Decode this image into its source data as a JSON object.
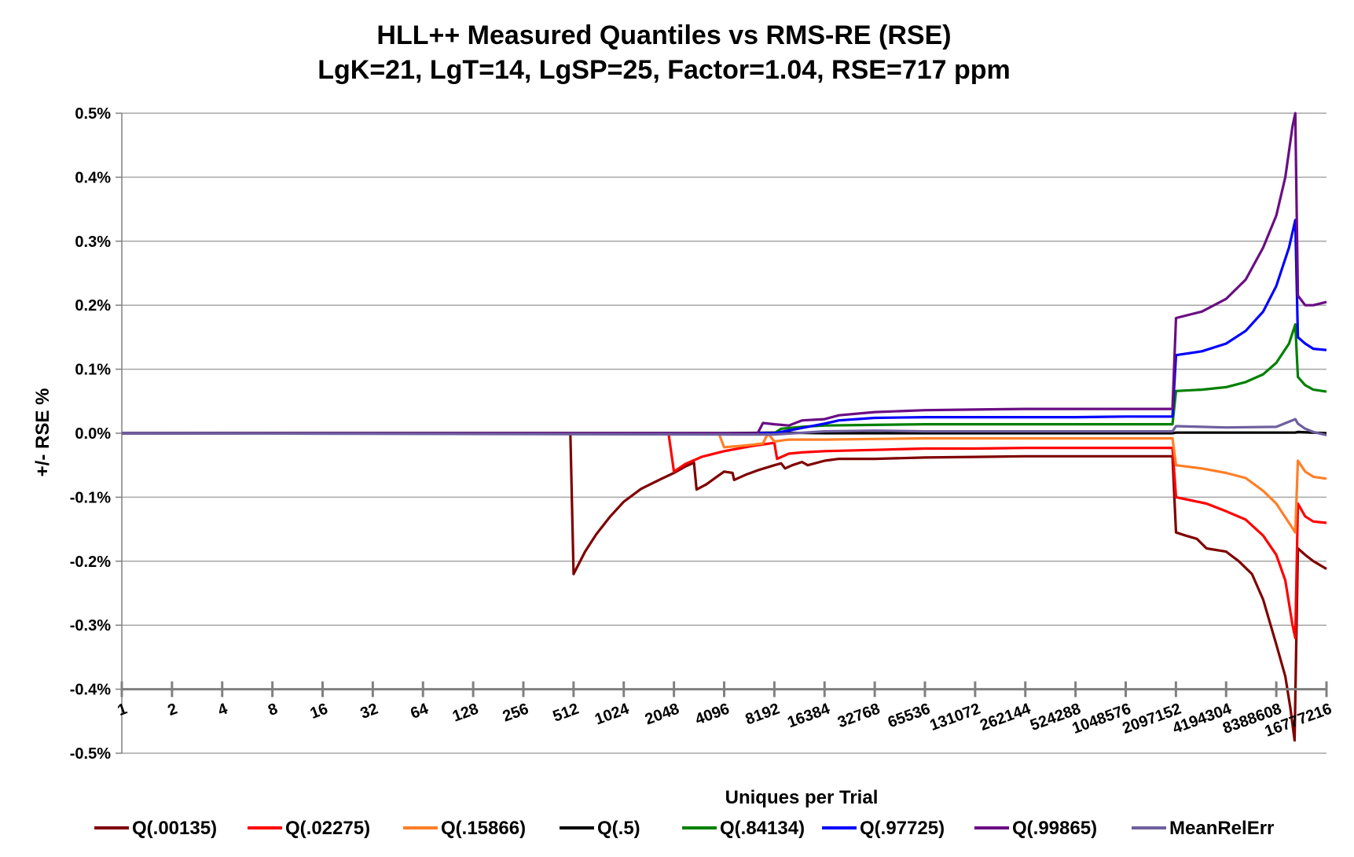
{
  "chart_data": {
    "type": "line",
    "title": "HLL++ Measured Quantiles vs RMS-RE (RSE)",
    "subtitle": "LgK=21, LgT=14, LgSP=25, Factor=1.04, RSE=717 ppm",
    "xlabel": "Uniques per Trial",
    "ylabel": "+/-  RSE %",
    "x_scale": "log2",
    "xlim": [
      1,
      16777216
    ],
    "ylim": [
      -0.5,
      0.5
    ],
    "grid": true,
    "legend_position": "bottom",
    "x_tick_labels": [
      "1",
      "2",
      "4",
      "8",
      "16",
      "32",
      "64",
      "128",
      "256",
      "512",
      "1024",
      "2048",
      "4096",
      "8192",
      "16384",
      "32768",
      "65536",
      "131072",
      "262144",
      "524288",
      "1048576",
      "2097152",
      "4194304",
      "8388608",
      "16777216"
    ],
    "y_tick_labels": [
      "0.5%",
      "0.4%",
      "0.3%",
      "0.2%",
      "0.1%",
      "0.0%",
      "-0.1%",
      "-0.2%",
      "-0.3%",
      "-0.4%",
      "-0.5%"
    ],
    "y_ticks": [
      0.5,
      0.4,
      0.3,
      0.2,
      0.1,
      0.0,
      -0.1,
      -0.2,
      -0.3,
      -0.4,
      -0.5
    ],
    "series": [
      {
        "name": "Q(.00135)",
        "color": "#7f0000",
        "points": [
          [
            1,
            0
          ],
          [
            256,
            0
          ],
          [
            490,
            0
          ],
          [
            512,
            -0.22
          ],
          [
            600,
            -0.185
          ],
          [
            700,
            -0.158
          ],
          [
            850,
            -0.13
          ],
          [
            1024,
            -0.107
          ],
          [
            1300,
            -0.087
          ],
          [
            1700,
            -0.072
          ],
          [
            2048,
            -0.062
          ],
          [
            2400,
            -0.052
          ],
          [
            2700,
            -0.046
          ],
          [
            2800,
            -0.088
          ],
          [
            3200,
            -0.08
          ],
          [
            3700,
            -0.068
          ],
          [
            4096,
            -0.06
          ],
          [
            4600,
            -0.062
          ],
          [
            4700,
            -0.073
          ],
          [
            5500,
            -0.065
          ],
          [
            6500,
            -0.058
          ],
          [
            8192,
            -0.05
          ],
          [
            9000,
            -0.047
          ],
          [
            9500,
            -0.055
          ],
          [
            10500,
            -0.05
          ],
          [
            12000,
            -0.045
          ],
          [
            13000,
            -0.05
          ],
          [
            16384,
            -0.043
          ],
          [
            20000,
            -0.04
          ],
          [
            32768,
            -0.04
          ],
          [
            65536,
            -0.038
          ],
          [
            131072,
            -0.037
          ],
          [
            262144,
            -0.036
          ],
          [
            524288,
            -0.036
          ],
          [
            1048576,
            -0.036
          ],
          [
            2000000,
            -0.036
          ],
          [
            2100000,
            -0.155
          ],
          [
            2400000,
            -0.16
          ],
          [
            2800000,
            -0.165
          ],
          [
            3200000,
            -0.18
          ],
          [
            4194304,
            -0.185
          ],
          [
            5000000,
            -0.2
          ],
          [
            6000000,
            -0.22
          ],
          [
            7000000,
            -0.26
          ],
          [
            8388608,
            -0.33
          ],
          [
            9500000,
            -0.38
          ],
          [
            10200000,
            -0.43
          ],
          [
            10800000,
            -0.48
          ],
          [
            11300000,
            -0.18
          ],
          [
            12500000,
            -0.19
          ],
          [
            14000000,
            -0.2
          ],
          [
            16777216,
            -0.212
          ]
        ]
      },
      {
        "name": "Q(.02275)",
        "color": "#ff0000",
        "points": [
          [
            1,
            0
          ],
          [
            1024,
            0
          ],
          [
            1900,
            0
          ],
          [
            2048,
            -0.06
          ],
          [
            2400,
            -0.048
          ],
          [
            3000,
            -0.037
          ],
          [
            4096,
            -0.028
          ],
          [
            6000,
            -0.02
          ],
          [
            8192,
            -0.015
          ],
          [
            8500,
            -0.04
          ],
          [
            10000,
            -0.032
          ],
          [
            12000,
            -0.03
          ],
          [
            16384,
            -0.028
          ],
          [
            32768,
            -0.026
          ],
          [
            65536,
            -0.024
          ],
          [
            131072,
            -0.024
          ],
          [
            262144,
            -0.023
          ],
          [
            524288,
            -0.023
          ],
          [
            1048576,
            -0.023
          ],
          [
            2000000,
            -0.023
          ],
          [
            2100000,
            -0.1
          ],
          [
            2600000,
            -0.105
          ],
          [
            3200000,
            -0.11
          ],
          [
            4194304,
            -0.122
          ],
          [
            5500000,
            -0.135
          ],
          [
            7000000,
            -0.16
          ],
          [
            8388608,
            -0.19
          ],
          [
            9500000,
            -0.23
          ],
          [
            10500000,
            -0.3
          ],
          [
            10900000,
            -0.32
          ],
          [
            11300000,
            -0.11
          ],
          [
            12500000,
            -0.13
          ],
          [
            14000000,
            -0.138
          ],
          [
            16777216,
            -0.14
          ]
        ]
      },
      {
        "name": "Q(.15866)",
        "color": "#ff7f27",
        "points": [
          [
            1,
            0
          ],
          [
            2048,
            0
          ],
          [
            3800,
            0
          ],
          [
            4096,
            -0.022
          ],
          [
            5000,
            -0.02
          ],
          [
            6000,
            -0.018
          ],
          [
            7000,
            -0.016
          ],
          [
            7500,
            0
          ],
          [
            8192,
            -0.013
          ],
          [
            10000,
            -0.01
          ],
          [
            16384,
            -0.01
          ],
          [
            32768,
            -0.009
          ],
          [
            65536,
            -0.008
          ],
          [
            131072,
            -0.008
          ],
          [
            262144,
            -0.008
          ],
          [
            524288,
            -0.008
          ],
          [
            1048576,
            -0.008
          ],
          [
            2000000,
            -0.008
          ],
          [
            2100000,
            -0.05
          ],
          [
            3000000,
            -0.055
          ],
          [
            4194304,
            -0.062
          ],
          [
            5500000,
            -0.07
          ],
          [
            7000000,
            -0.09
          ],
          [
            8388608,
            -0.11
          ],
          [
            10000000,
            -0.14
          ],
          [
            10900000,
            -0.155
          ],
          [
            11300000,
            -0.043
          ],
          [
            12500000,
            -0.06
          ],
          [
            14000000,
            -0.068
          ],
          [
            16777216,
            -0.071
          ]
        ]
      },
      {
        "name": "Q(.5)",
        "color": "#000000",
        "points": [
          [
            1,
            0
          ],
          [
            4096,
            0
          ],
          [
            8192,
            0.001
          ],
          [
            16384,
            0
          ],
          [
            65536,
            0
          ],
          [
            262144,
            0
          ],
          [
            1048576,
            0
          ],
          [
            2000000,
            0
          ],
          [
            2100000,
            0.001
          ],
          [
            4194304,
            0.001
          ],
          [
            8388608,
            0.001
          ],
          [
            10900000,
            0.001
          ],
          [
            11300000,
            0.002
          ],
          [
            16777216,
            0
          ]
        ]
      },
      {
        "name": "Q(.84134)",
        "color": "#008000",
        "points": [
          [
            1,
            0
          ],
          [
            8192,
            0
          ],
          [
            9000,
            0.007
          ],
          [
            12000,
            0.01
          ],
          [
            16384,
            0.012
          ],
          [
            32768,
            0.013
          ],
          [
            65536,
            0.014
          ],
          [
            131072,
            0.014
          ],
          [
            262144,
            0.014
          ],
          [
            524288,
            0.014
          ],
          [
            1048576,
            0.014
          ],
          [
            2000000,
            0.014
          ],
          [
            2100000,
            0.066
          ],
          [
            3000000,
            0.068
          ],
          [
            4194304,
            0.072
          ],
          [
            5500000,
            0.08
          ],
          [
            7000000,
            0.092
          ],
          [
            8388608,
            0.11
          ],
          [
            10000000,
            0.14
          ],
          [
            10900000,
            0.17
          ],
          [
            11300000,
            0.088
          ],
          [
            12500000,
            0.075
          ],
          [
            14000000,
            0.068
          ],
          [
            16777216,
            0.065
          ]
        ]
      },
      {
        "name": "Q(.97725)",
        "color": "#0000ff",
        "points": [
          [
            1,
            0
          ],
          [
            8192,
            0
          ],
          [
            16384,
            0.015
          ],
          [
            20000,
            0.02
          ],
          [
            32768,
            0.024
          ],
          [
            65536,
            0.025
          ],
          [
            131072,
            0.025
          ],
          [
            262144,
            0.025
          ],
          [
            524288,
            0.025
          ],
          [
            1048576,
            0.026
          ],
          [
            2000000,
            0.026
          ],
          [
            2100000,
            0.122
          ],
          [
            3000000,
            0.128
          ],
          [
            4194304,
            0.14
          ],
          [
            5500000,
            0.16
          ],
          [
            7000000,
            0.19
          ],
          [
            8388608,
            0.23
          ],
          [
            10000000,
            0.29
          ],
          [
            10900000,
            0.333
          ],
          [
            11300000,
            0.15
          ],
          [
            12500000,
            0.14
          ],
          [
            14000000,
            0.132
          ],
          [
            16777216,
            0.13
          ]
        ]
      },
      {
        "name": "Q(.99865)",
        "color": "#6a0d83",
        "points": [
          [
            1,
            0
          ],
          [
            4096,
            0
          ],
          [
            6500,
            0
          ],
          [
            7000,
            0.016
          ],
          [
            8192,
            0.014
          ],
          [
            10000,
            0.012
          ],
          [
            12000,
            0.02
          ],
          [
            16384,
            0.022
          ],
          [
            20000,
            0.028
          ],
          [
            32768,
            0.033
          ],
          [
            65536,
            0.036
          ],
          [
            131072,
            0.037
          ],
          [
            262144,
            0.038
          ],
          [
            524288,
            0.038
          ],
          [
            1048576,
            0.038
          ],
          [
            2000000,
            0.038
          ],
          [
            2100000,
            0.18
          ],
          [
            3000000,
            0.19
          ],
          [
            4194304,
            0.21
          ],
          [
            5500000,
            0.24
          ],
          [
            7000000,
            0.29
          ],
          [
            8388608,
            0.34
          ],
          [
            9500000,
            0.4
          ],
          [
            10500000,
            0.48
          ],
          [
            10900000,
            0.5
          ],
          [
            11300000,
            0.215
          ],
          [
            12500000,
            0.2
          ],
          [
            14000000,
            0.2
          ],
          [
            16777216,
            0.205
          ]
        ]
      },
      {
        "name": "MeanRelErr",
        "color": "#6f5f9f",
        "points": [
          [
            1,
            0
          ],
          [
            4096,
            -0.002
          ],
          [
            8192,
            -0.002
          ],
          [
            16384,
            0.003
          ],
          [
            32768,
            0.004
          ],
          [
            65536,
            0.003
          ],
          [
            131072,
            0.003
          ],
          [
            262144,
            0.003
          ],
          [
            524288,
            0.003
          ],
          [
            1048576,
            0.003
          ],
          [
            2000000,
            0.003
          ],
          [
            2100000,
            0.011
          ],
          [
            4194304,
            0.009
          ],
          [
            8388608,
            0.01
          ],
          [
            10900000,
            0.022
          ],
          [
            11300000,
            0.015
          ],
          [
            12500000,
            0.007
          ],
          [
            14000000,
            0.002
          ],
          [
            16777216,
            -0.003
          ]
        ]
      }
    ]
  }
}
